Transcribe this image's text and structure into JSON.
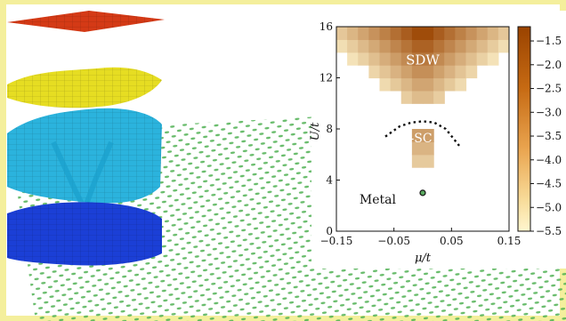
{
  "colors": {
    "frame": "#f4ef9c",
    "top_layer": "#d43a16",
    "yellow_layer": "#e8e020",
    "cyan_layer": "#2aa8d8",
    "blue_layer": "#1840d8",
    "lattice_green": "#4caf50",
    "colorbar_dark": "#9a4300",
    "colorbar_light": "#fff4c8"
  },
  "chart_data": {
    "type": "heatmap",
    "title": "",
    "xlabel": "μ/t",
    "ylabel": "U/t",
    "xlim": [
      -0.15,
      0.15
    ],
    "ylim": [
      0,
      16
    ],
    "xticks": [
      -0.15,
      -0.05,
      0.05,
      0.15
    ],
    "xtick_labels": [
      "−0.15",
      "−0.05",
      "0.05",
      "0.15"
    ],
    "yticks": [
      0,
      4,
      8,
      12,
      16
    ],
    "ytick_labels": [
      "0",
      "4",
      "8",
      "12",
      "16"
    ],
    "colorbar": {
      "ticks": [
        -1.5,
        -2.0,
        -2.5,
        -3.0,
        -3.5,
        -4.0,
        -4.5,
        -5.0,
        -5.5
      ],
      "tick_labels": [
        "−1.5",
        "−2.0",
        "−2.5",
        "−3.0",
        "−3.5",
        "−4.0",
        "−4.5",
        "−5.0",
        "−5.5"
      ],
      "range": [
        -5.5,
        -1.2
      ]
    },
    "regions": [
      {
        "label": "SDW",
        "x": 0.0,
        "y": 13.4
      },
      {
        "label": "d-SC",
        "x": -0.01,
        "y": 7.3
      },
      {
        "label": "Metal",
        "x": -0.11,
        "y": 2.5
      }
    ],
    "boundary_curve": {
      "style": "dotted",
      "x": [
        -0.065,
        -0.04,
        -0.02,
        0.0,
        0.02,
        0.04,
        0.065
      ],
      "y": [
        7.4,
        8.2,
        8.5,
        8.6,
        8.5,
        8.0,
        6.6
      ]
    },
    "critical_point": {
      "x": 0.0,
      "y": 3.0
    },
    "grid": false,
    "legend": "none"
  }
}
